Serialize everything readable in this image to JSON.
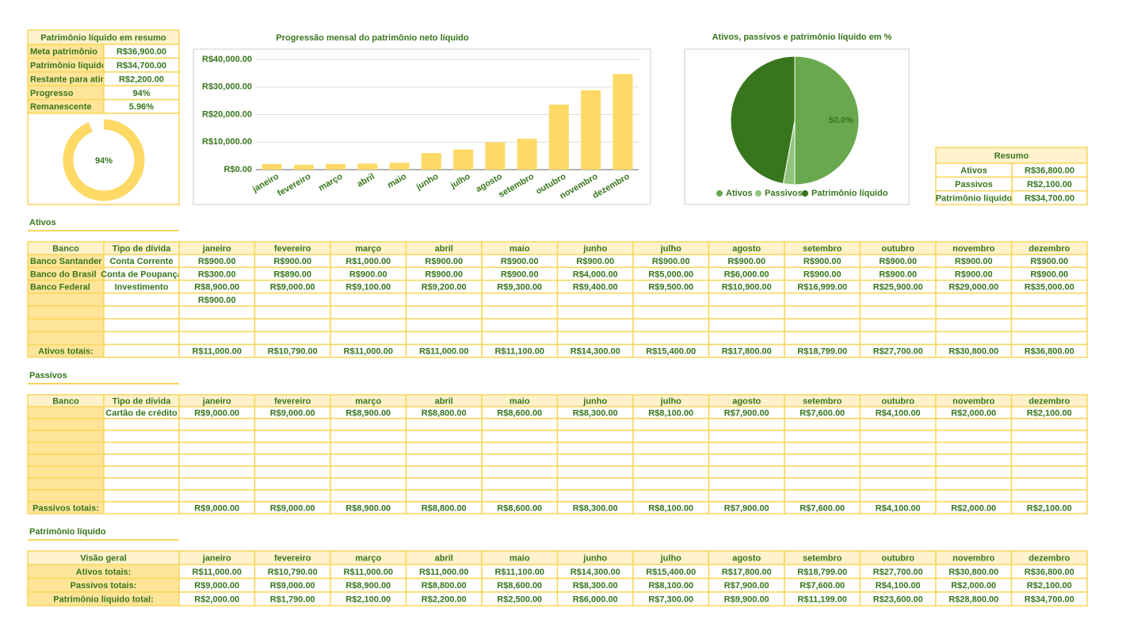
{
  "summary": {
    "title": "Patrimônio líquido em resumo",
    "rows": [
      [
        "Meta patrimônio",
        "R$36,900.00"
      ],
      [
        "Patrimônio líquido",
        "R$34,700.00"
      ],
      [
        "Restante para atingir",
        "R$2,200.00"
      ],
      [
        "Progresso",
        "94%"
      ],
      [
        "Remanescente",
        "5.96%"
      ]
    ]
  },
  "chart_data": [
    {
      "type": "gauge",
      "values": [
        94
      ],
      "value_labels": [
        "94%"
      ],
      "color": "#ffd966",
      "ylim": [
        0,
        100
      ]
    },
    {
      "type": "bar",
      "title": "Progressão mensal do patrimônio neto líquido",
      "categories": [
        "janeiro",
        "fevereiro",
        "março",
        "abril",
        "maio",
        "junho",
        "julho",
        "agosto",
        "setembro",
        "outubro",
        "novembro",
        "dezembro"
      ],
      "values": [
        2000,
        1790,
        2100,
        2200,
        2500,
        6000,
        7300,
        9900,
        11199,
        23600,
        28800,
        34700
      ],
      "color": "#ffd966",
      "ylim": [
        0,
        40000
      ],
      "yticks": [
        {
          "value": 0,
          "label": "R$0.00"
        },
        {
          "value": 10000,
          "label": "R$10,000.00"
        },
        {
          "value": 20000,
          "label": "R$20,000.00"
        },
        {
          "value": 30000,
          "label": "R$30,000.00"
        },
        {
          "value": 40000,
          "label": "R$40,000.00"
        }
      ],
      "grid": true
    },
    {
      "type": "pie",
      "title": "Ativos, passivos e patrimônio líquido em %",
      "categories": [
        "Ativos",
        "Passivos",
        "Patrimônio líquido"
      ],
      "values": [
        50.0,
        2.9,
        47.1
      ],
      "value_labels": [
        "50.0%",
        null,
        "47.1%"
      ],
      "colors": [
        "#6aa84f",
        "#93c47d",
        "#38761d"
      ],
      "legend": "bottom"
    }
  ],
  "resumo": {
    "title": "Resumo",
    "rows": [
      [
        "Ativos",
        "R$36,800.00"
      ],
      [
        "Passivos",
        "R$2,100.00"
      ],
      [
        "Patrimônio líquido",
        "R$34,700.00"
      ]
    ]
  },
  "ativos": {
    "title": "Ativos",
    "header": [
      "Banco",
      "Tipo de dívida",
      "janeiro",
      "fevereiro",
      "março",
      "abril",
      "maio",
      "junho",
      "julho",
      "agosto",
      "setembro",
      "outubro",
      "novembro",
      "dezembro"
    ],
    "rows": [
      [
        "Banco Santander",
        "Conta Corrente",
        "R$900.00",
        "R$900.00",
        "R$1,000.00",
        "R$900.00",
        "R$900.00",
        "R$900.00",
        "R$900.00",
        "R$900.00",
        "R$900.00",
        "R$900.00",
        "R$900.00",
        "R$900.00"
      ],
      [
        "Banco do Brasil",
        "Conta de Poupança",
        "R$300.00",
        "R$890.00",
        "R$900.00",
        "R$900.00",
        "R$900.00",
        "R$4,000.00",
        "R$5,000.00",
        "R$6,000.00",
        "R$900.00",
        "R$900.00",
        "R$900.00",
        "R$900.00"
      ],
      [
        "Banco Federal",
        "Investimento",
        "R$8,900.00",
        "R$9,000.00",
        "R$9,100.00",
        "R$9,200.00",
        "R$9,300.00",
        "R$9,400.00",
        "R$9,500.00",
        "R$10,900.00",
        "R$16,999.00",
        "R$25,900.00",
        "R$29,000.00",
        "R$35,000.00"
      ],
      [
        null,
        null,
        "R$900.00",
        null,
        null,
        null,
        null,
        null,
        null,
        null,
        null,
        null,
        null,
        null
      ]
    ],
    "total": [
      "Ativos totais:",
      null,
      "R$11,000.00",
      "R$10,790.00",
      "R$11,000.00",
      "R$11,000.00",
      "R$11,100.00",
      "R$14,300.00",
      "R$15,400.00",
      "R$17,800.00",
      "R$18,799.00",
      "R$27,700.00",
      "R$30,800.00",
      "R$36,800.00"
    ]
  },
  "passivos": {
    "title": "Passivos",
    "header": [
      "Banco",
      "Tipo de dívida",
      "janeiro",
      "fevereiro",
      "março",
      "abril",
      "maio",
      "junho",
      "julho",
      "agosto",
      "setembro",
      "outubro",
      "novembro",
      "dezembro"
    ],
    "rows": [
      [
        null,
        "Cartão de crédito",
        "R$9,000.00",
        "R$9,000.00",
        "R$8,900.00",
        "R$8,800.00",
        "R$8,600.00",
        "R$8,300.00",
        "R$8,100.00",
        "R$7,900.00",
        "R$7,600.00",
        "R$4,100.00",
        "R$2,000.00",
        "R$2,100.00"
      ]
    ],
    "total": [
      "Passivos totais:",
      null,
      "R$9,000.00",
      "R$9,000.00",
      "R$8,900.00",
      "R$8,800.00",
      "R$8,600.00",
      "R$8,300.00",
      "R$8,100.00",
      "R$7,900.00",
      "R$7,600.00",
      "R$4,100.00",
      "R$2,000.00",
      "R$2,100.00"
    ]
  },
  "patrimonio": {
    "title": "Patrimônio líquido",
    "header": [
      "Visão geral",
      "janeiro",
      "fevereiro",
      "março",
      "abril",
      "maio",
      "junho",
      "julho",
      "agosto",
      "setembro",
      "outubro",
      "novembro",
      "dezembro"
    ],
    "rows": [
      [
        "Ativos totais:",
        "R$11,000.00",
        "R$10,790.00",
        "R$11,000.00",
        "R$11,000.00",
        "R$11,100.00",
        "R$14,300.00",
        "R$15,400.00",
        "R$17,800.00",
        "R$18,799.00",
        "R$27,700.00",
        "R$30,800.00",
        "R$36,800.00"
      ],
      [
        "Passivos totais:",
        "R$9,000.00",
        "R$9,000.00",
        "R$8,900.00",
        "R$8,800.00",
        "R$8,600.00",
        "R$8,300.00",
        "R$8,100.00",
        "R$7,900.00",
        "R$7,600.00",
        "R$4,100.00",
        "R$2,000.00",
        "R$2,100.00"
      ],
      [
        "Patrimônio líquido total:",
        "R$2,000.00",
        "R$1,790.00",
        "R$2,100.00",
        "R$2,200.00",
        "R$2,500.00",
        "R$6,000.00",
        "R$7,300.00",
        "R$9,900.00",
        "R$11,199.00",
        "R$23,600.00",
        "R$28,800.00",
        "R$34,700.00"
      ]
    ]
  }
}
